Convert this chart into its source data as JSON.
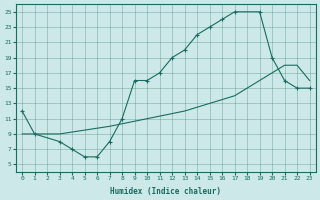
{
  "xlabel": "Humidex (Indice chaleur)",
  "background_color": "#cce8e8",
  "line_color": "#1a6b60",
  "xlim": [
    -0.5,
    23.5
  ],
  "ylim": [
    4,
    26
  ],
  "xticks": [
    0,
    1,
    2,
    3,
    4,
    5,
    6,
    7,
    8,
    9,
    10,
    11,
    12,
    13,
    14,
    15,
    16,
    17,
    18,
    19,
    20,
    21,
    22,
    23
  ],
  "yticks": [
    5,
    7,
    9,
    11,
    13,
    15,
    17,
    19,
    21,
    23,
    25
  ],
  "curve1_x": [
    0,
    1,
    3,
    4,
    5,
    6,
    7,
    8,
    9,
    10,
    11,
    12,
    13,
    14,
    15,
    16,
    17,
    19,
    20,
    21,
    22,
    23
  ],
  "curve1_y": [
    12,
    9,
    8,
    7,
    6,
    6,
    8,
    11,
    16,
    16,
    17,
    19,
    20,
    22,
    23,
    24,
    25,
    25,
    19,
    16,
    15,
    15
  ],
  "curve2_x": [
    0,
    3,
    7,
    10,
    13,
    15,
    17,
    18,
    19,
    20,
    21,
    22,
    23
  ],
  "curve2_y": [
    9,
    9,
    10,
    11,
    12,
    13,
    14,
    15,
    16,
    17,
    18,
    18,
    16
  ]
}
